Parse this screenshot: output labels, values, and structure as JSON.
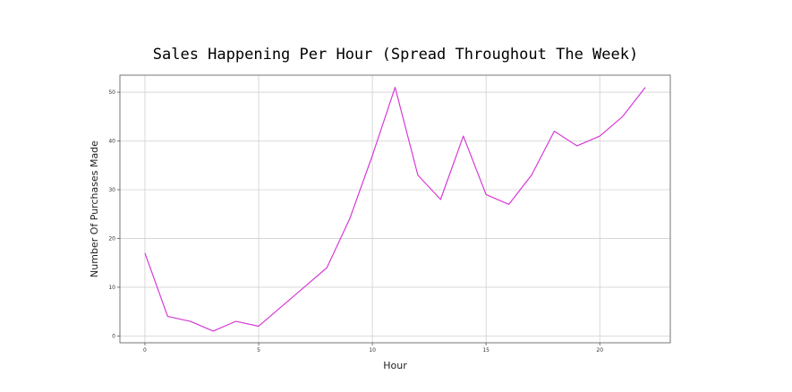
{
  "chart_data": {
    "type": "line",
    "title": "Sales Happening Per Hour (Spread Throughout The Week)",
    "xlabel": "Hour",
    "ylabel": "Number Of Purchases Made",
    "x": [
      0,
      1,
      2,
      3,
      4,
      5,
      6,
      7,
      8,
      9,
      10,
      11,
      12,
      13,
      14,
      15,
      16,
      17,
      18,
      19,
      20,
      21,
      22
    ],
    "series": [
      {
        "values": [
          17,
          4,
          3,
          1,
          3,
          2,
          6,
          10,
          14,
          24,
          37,
          51,
          33,
          28,
          41,
          29,
          27,
          33,
          42,
          39,
          41,
          45,
          51
        ],
        "color": "#d63ad6"
      }
    ],
    "xticks": [
      0,
      5,
      10,
      15,
      20
    ],
    "yticks": [
      0,
      10,
      20,
      30,
      40,
      50
    ],
    "xlim": [
      -1.1,
      23.1
    ],
    "ylim": [
      -1.4,
      53.5
    ],
    "grid": true
  }
}
